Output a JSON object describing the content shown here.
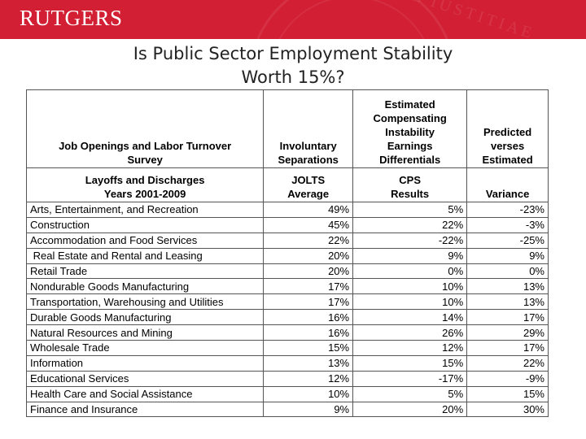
{
  "header": {
    "logo": "RUTGERS",
    "title_line1": "Is Public Sector Employment Stability",
    "title_line2": "Worth 15%?"
  },
  "table": {
    "header_row1": {
      "col1": [
        "Job Openings and Labor Turnover",
        "Survey"
      ],
      "col2": [
        "Involuntary",
        "Separations"
      ],
      "col3": [
        "Estimated",
        "Compensating",
        "Instability",
        "Earnings",
        "Differentials"
      ],
      "col4": [
        "Predicted",
        "verses",
        "Estimated"
      ]
    },
    "header_row2": {
      "col1": [
        "Layoffs and Discharges",
        "Years 2001-2009"
      ],
      "col2": [
        "JOLTS",
        "Average"
      ],
      "col3": [
        "CPS",
        "Results"
      ],
      "col4": [
        "",
        "Variance"
      ]
    },
    "rows": [
      {
        "industry": "Arts, Entertainment, and Recreation",
        "separations": "49%",
        "differential": "5%",
        "variance": "-23%"
      },
      {
        "industry": "Construction",
        "separations": "45%",
        "differential": "22%",
        "variance": "-3%"
      },
      {
        "industry": "Accommodation and Food Services",
        "separations": "22%",
        "differential": "-22%",
        "variance": "-25%"
      },
      {
        "industry": " Real Estate and Rental and Leasing",
        "separations": "20%",
        "differential": "9%",
        "variance": "9%"
      },
      {
        "industry": "Retail Trade",
        "separations": "20%",
        "differential": "0%",
        "variance": "0%"
      },
      {
        "industry": "Nondurable Goods Manufacturing",
        "separations": "17%",
        "differential": "10%",
        "variance": "13%"
      },
      {
        "industry": "Transportation, Warehousing and Utilities",
        "separations": "17%",
        "differential": "10%",
        "variance": "13%"
      },
      {
        "industry": "Durable Goods Manufacturing",
        "separations": "16%",
        "differential": "14%",
        "variance": "17%"
      },
      {
        "industry": "Natural Resources and Mining",
        "separations": "16%",
        "differential": "26%",
        "variance": "29%"
      },
      {
        "industry": "Wholesale Trade",
        "separations": "15%",
        "differential": "12%",
        "variance": "17%"
      },
      {
        "industry": "Information",
        "separations": "13%",
        "differential": "15%",
        "variance": "22%"
      },
      {
        "industry": "Educational Services",
        "separations": "12%",
        "differential": "-17%",
        "variance": "-9%"
      },
      {
        "industry": "Health Care and Social Assistance",
        "separations": "10%",
        "differential": "5%",
        "variance": "15%"
      },
      {
        "industry": "Finance and Insurance",
        "separations": "9%",
        "differential": "20%",
        "variance": "30%"
      }
    ]
  },
  "colors": {
    "banner": "#d21f34",
    "grid": "#555555"
  }
}
